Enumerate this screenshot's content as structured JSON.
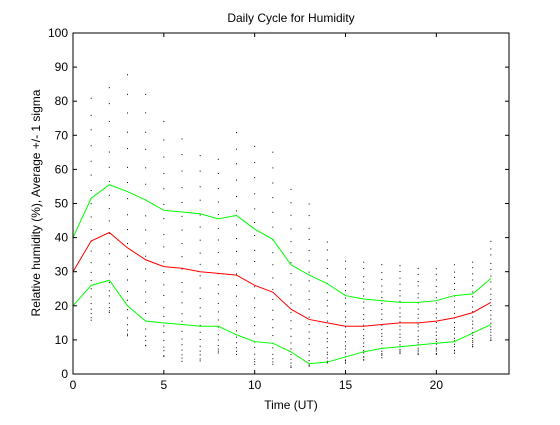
{
  "chart_data": {
    "type": "line",
    "title": "Daily Cycle for Humidity",
    "xlabel": "Time (UT)",
    "ylabel": "Relative humidity (%), Average +/- 1 sigma",
    "xlim": [
      0,
      24
    ],
    "ylim": [
      0,
      100
    ],
    "xticks": [
      0,
      5,
      10,
      15,
      20
    ],
    "yticks": [
      0,
      10,
      20,
      30,
      40,
      50,
      60,
      70,
      80,
      90,
      100
    ],
    "grid": false,
    "legend": "none",
    "x": [
      0,
      1,
      2,
      3,
      4,
      5,
      6,
      7,
      8,
      9,
      10,
      11,
      12,
      13,
      14,
      15,
      16,
      17,
      18,
      19,
      20,
      21,
      22,
      23
    ],
    "series": [
      {
        "color": "#ff0000",
        "values": [
          30,
          39,
          41.5,
          37,
          33.5,
          31.5,
          31,
          30,
          29.5,
          29,
          26,
          24,
          19,
          16,
          15,
          14,
          14,
          14.5,
          15,
          15,
          15.5,
          16.5,
          18,
          21
        ]
      },
      {
        "color": "#00ff00",
        "values": [
          40,
          51.5,
          55.5,
          53.5,
          51,
          48,
          47.5,
          47,
          45.5,
          46.5,
          42.5,
          39.5,
          32,
          29,
          26.5,
          23,
          22,
          21.5,
          21,
          21,
          21.5,
          23,
          23.5,
          28
        ]
      },
      {
        "color": "#00ff00",
        "values": [
          20,
          26,
          27.5,
          20,
          15.5,
          15,
          14.5,
          14,
          14,
          11.5,
          9.5,
          9,
          6.5,
          3,
          3.5,
          5,
          6.5,
          7.5,
          8,
          8.5,
          9,
          9.5,
          12,
          14.5
        ]
      }
    ],
    "scatter": {
      "color": "#000000",
      "x_min": 0,
      "x_max": 23,
      "ranges": [
        [
          12,
          44
        ],
        [
          16,
          81
        ],
        [
          18,
          84
        ],
        [
          11,
          88
        ],
        [
          8,
          82
        ],
        [
          5,
          74
        ],
        [
          4,
          69
        ],
        [
          4,
          64
        ],
        [
          6,
          63
        ],
        [
          6,
          71
        ],
        [
          3,
          67
        ],
        [
          3,
          65
        ],
        [
          2,
          54
        ],
        [
          2,
          50
        ],
        [
          3,
          39
        ],
        [
          3,
          33
        ],
        [
          4,
          33
        ],
        [
          5,
          32
        ],
        [
          6,
          32
        ],
        [
          6,
          31
        ],
        [
          6,
          31
        ],
        [
          6,
          32
        ],
        [
          8,
          33
        ],
        [
          10,
          39
        ]
      ],
      "points_per_hour": 22
    }
  }
}
